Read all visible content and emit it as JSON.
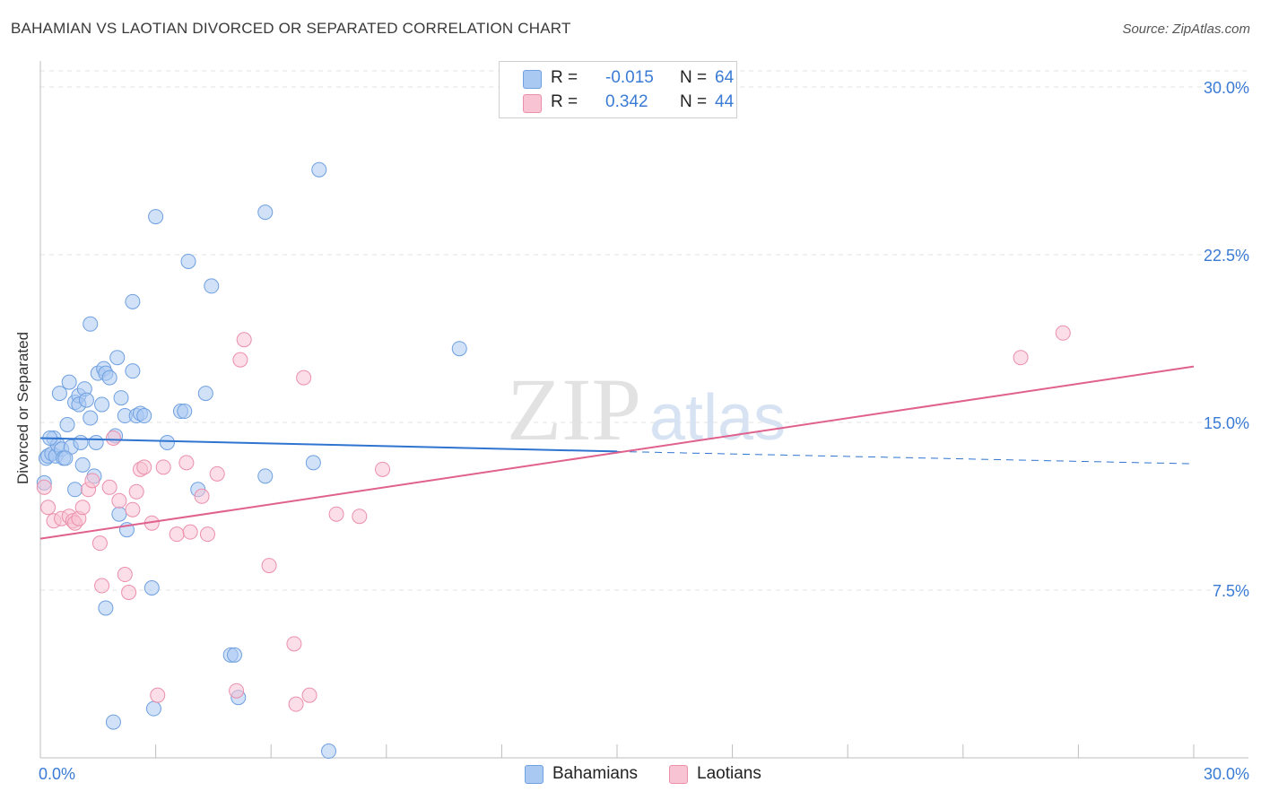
{
  "title": "BAHAMIAN VS LAOTIAN DIVORCED OR SEPARATED CORRELATION CHART",
  "source": "Source: ZipAtlas.com",
  "watermark": {
    "zip": "ZIP",
    "atlas": "atlas"
  },
  "legend": {
    "rows": [
      {
        "r_label": "R =",
        "r_value": "-0.015",
        "n_label": "N =",
        "n_value": "64",
        "color": "#a9c8f2",
        "border": "#6fa0e0"
      },
      {
        "r_label": "R =",
        "r_value": "0.342",
        "n_label": "N =",
        "n_value": "44",
        "color": "#f8c3d3",
        "border": "#ec8fab"
      }
    ]
  },
  "bottom_legend": [
    {
      "label": "Bahamians",
      "color": "#a9c8f2",
      "border": "#6fa0e0"
    },
    {
      "label": "Laotians",
      "color": "#f8c3d3",
      "border": "#ec8fab"
    }
  ],
  "chart_data": {
    "type": "scatter",
    "title": "BAHAMIAN VS LAOTIAN DIVORCED OR SEPARATED CORRELATION CHART",
    "xlabel": "",
    "ylabel": "Divorced or Separated",
    "xlim": [
      0,
      30
    ],
    "ylim": [
      0,
      30
    ],
    "x_tick_labels": [
      "0.0%",
      "30.0%"
    ],
    "y_ticks": [
      7.5,
      15.0,
      22.5,
      30.0
    ],
    "y_tick_labels": [
      "7.5%",
      "15.0%",
      "22.5%",
      "30.0%"
    ],
    "colors": {
      "Bahamians_fill": "#a9c8f2",
      "Bahamians_stroke": "#6fa0e0",
      "Bahamians_line": "#2f74d0",
      "Laotians_fill": "#f8c3d3",
      "Laotians_stroke": "#ec8fab",
      "Laotians_line": "#e0608e",
      "tick_label": "#3a7bd5",
      "grid": "#e3e3e3"
    },
    "series": [
      {
        "name": "Bahamians",
        "points": [
          [
            0.1,
            12.3
          ],
          [
            0.15,
            13.4
          ],
          [
            0.2,
            13.5
          ],
          [
            0.3,
            13.6
          ],
          [
            0.35,
            14.3
          ],
          [
            0.4,
            13.5
          ],
          [
            0.45,
            14.0
          ],
          [
            0.5,
            16.3
          ],
          [
            0.55,
            13.8
          ],
          [
            0.6,
            13.4
          ],
          [
            0.7,
            14.9
          ],
          [
            0.75,
            16.8
          ],
          [
            0.8,
            13.9
          ],
          [
            0.9,
            15.9
          ],
          [
            0.9,
            12.0
          ],
          [
            1.0,
            16.2
          ],
          [
            1.0,
            15.8
          ],
          [
            1.05,
            14.1
          ],
          [
            1.1,
            13.1
          ],
          [
            1.15,
            16.5
          ],
          [
            1.2,
            16.0
          ],
          [
            1.3,
            19.4
          ],
          [
            1.3,
            15.2
          ],
          [
            1.4,
            12.6
          ],
          [
            1.45,
            14.1
          ],
          [
            1.5,
            17.2
          ],
          [
            1.6,
            15.8
          ],
          [
            1.65,
            17.4
          ],
          [
            1.7,
            6.7
          ],
          [
            1.7,
            17.2
          ],
          [
            1.8,
            17.0
          ],
          [
            1.9,
            1.6
          ],
          [
            1.95,
            14.4
          ],
          [
            2.0,
            17.9
          ],
          [
            2.05,
            10.9
          ],
          [
            2.1,
            16.1
          ],
          [
            2.2,
            15.3
          ],
          [
            2.25,
            10.2
          ],
          [
            2.4,
            17.3
          ],
          [
            2.4,
            20.4
          ],
          [
            2.5,
            15.3
          ],
          [
            2.6,
            15.4
          ],
          [
            2.7,
            15.3
          ],
          [
            2.9,
            7.6
          ],
          [
            2.95,
            2.2
          ],
          [
            3.0,
            24.2
          ],
          [
            3.3,
            14.1
          ],
          [
            3.65,
            15.5
          ],
          [
            3.75,
            15.5
          ],
          [
            3.85,
            22.2
          ],
          [
            4.1,
            12.0
          ],
          [
            4.3,
            16.3
          ],
          [
            4.45,
            21.1
          ],
          [
            4.95,
            4.6
          ],
          [
            5.05,
            4.6
          ],
          [
            5.15,
            2.7
          ],
          [
            5.85,
            24.4
          ],
          [
            5.85,
            12.6
          ],
          [
            7.1,
            13.2
          ],
          [
            7.25,
            26.3
          ],
          [
            7.5,
            0.3
          ],
          [
            10.9,
            18.3
          ],
          [
            0.25,
            14.3
          ],
          [
            0.65,
            13.4
          ]
        ],
        "trend": {
          "x0": 0,
          "y0": 14.3,
          "x1": 15,
          "y1": 13.7,
          "x_dash_end": 30,
          "y_dash_end": 13.15
        }
      },
      {
        "name": "Laotians",
        "points": [
          [
            0.1,
            12.1
          ],
          [
            0.2,
            11.2
          ],
          [
            0.35,
            10.6
          ],
          [
            0.55,
            10.7
          ],
          [
            0.75,
            10.8
          ],
          [
            0.85,
            10.6
          ],
          [
            0.9,
            10.5
          ],
          [
            1.0,
            10.7
          ],
          [
            1.1,
            11.2
          ],
          [
            1.25,
            12.0
          ],
          [
            1.35,
            12.4
          ],
          [
            1.55,
            9.6
          ],
          [
            1.6,
            7.7
          ],
          [
            1.8,
            12.1
          ],
          [
            1.9,
            14.3
          ],
          [
            2.05,
            11.5
          ],
          [
            2.2,
            8.2
          ],
          [
            2.3,
            7.4
          ],
          [
            2.4,
            11.1
          ],
          [
            2.5,
            11.9
          ],
          [
            2.6,
            12.9
          ],
          [
            2.7,
            13.0
          ],
          [
            2.9,
            10.5
          ],
          [
            3.05,
            2.8
          ],
          [
            3.2,
            13.0
          ],
          [
            3.55,
            10.0
          ],
          [
            3.8,
            13.2
          ],
          [
            3.9,
            10.1
          ],
          [
            4.2,
            11.7
          ],
          [
            4.35,
            10.0
          ],
          [
            4.6,
            12.7
          ],
          [
            5.1,
            3.0
          ],
          [
            5.2,
            17.8
          ],
          [
            5.3,
            18.7
          ],
          [
            5.95,
            8.6
          ],
          [
            6.6,
            5.1
          ],
          [
            6.65,
            2.4
          ],
          [
            6.85,
            17.0
          ],
          [
            7.0,
            2.8
          ],
          [
            7.7,
            10.9
          ],
          [
            8.3,
            10.8
          ],
          [
            8.9,
            12.9
          ],
          [
            25.5,
            17.9
          ],
          [
            26.6,
            19.0
          ]
        ],
        "trend": {
          "x0": 0,
          "y0": 9.8,
          "x1": 30,
          "y1": 17.5
        }
      }
    ]
  }
}
